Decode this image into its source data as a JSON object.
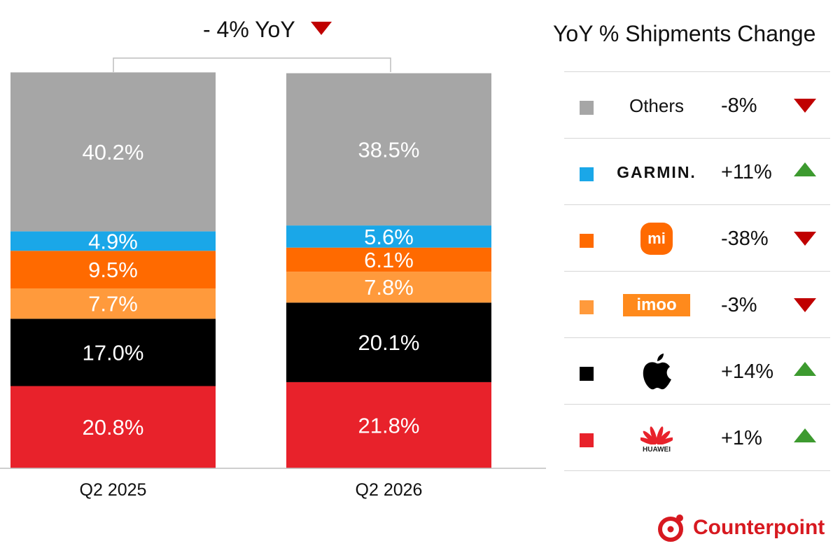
{
  "chart_data": {
    "type": "bar",
    "stacked": true,
    "categories": [
      "Q2 2025",
      "Q2 2026"
    ],
    "ylim": [
      0,
      100
    ],
    "series": [
      {
        "brand": "huawei",
        "color": "#e8222b",
        "values": [
          20.8,
          21.8
        ],
        "labels": [
          "20.8%",
          "21.8%"
        ]
      },
      {
        "brand": "apple",
        "color": "#000000",
        "values": [
          17.0,
          20.1
        ],
        "labels": [
          "17.0%",
          "20.1%"
        ]
      },
      {
        "brand": "imoo",
        "color": "#ff9a3c",
        "values": [
          7.7,
          7.8
        ],
        "labels": [
          "7.7%",
          "7.8%"
        ]
      },
      {
        "brand": "xiaomi",
        "color": "#ff6a00",
        "values": [
          9.5,
          6.1
        ],
        "labels": [
          "9.5%",
          "6.1%"
        ]
      },
      {
        "brand": "garmin",
        "color": "#1aa7e8",
        "values": [
          4.9,
          5.6
        ],
        "labels": [
          "4.9%",
          "5.6%"
        ]
      },
      {
        "brand": "others",
        "color": "#a6a6a6",
        "values": [
          40.2,
          38.5
        ],
        "labels": [
          "40.2%",
          "38.5%"
        ]
      }
    ],
    "annotation": {
      "text": "- 4% YoY",
      "direction": "down"
    }
  },
  "legend": {
    "title": "YoY % Shipments Change",
    "rows": [
      {
        "brand": "others",
        "name": "Others",
        "change": "-8%",
        "direction": "down",
        "color": "#a6a6a6"
      },
      {
        "brand": "garmin",
        "name": "GARMIN.",
        "change": "+11%",
        "direction": "up",
        "color": "#1aa7e8"
      },
      {
        "brand": "xiaomi",
        "name": "mi",
        "change": "-38%",
        "direction": "down",
        "color": "#ff6a00"
      },
      {
        "brand": "imoo",
        "name": "imoo",
        "change": "-3%",
        "direction": "down",
        "color": "#ff9a3c"
      },
      {
        "brand": "apple",
        "name": "",
        "change": "+14%",
        "direction": "up",
        "color": "#000000"
      },
      {
        "brand": "huawei",
        "name": "HUAWEI",
        "change": "+1%",
        "direction": "up",
        "color": "#e8222b"
      }
    ]
  },
  "branding": {
    "name": "Counterpoint",
    "color": "#d71920"
  },
  "colors": {
    "up": "#3d9a2f",
    "down": "#c00000"
  }
}
